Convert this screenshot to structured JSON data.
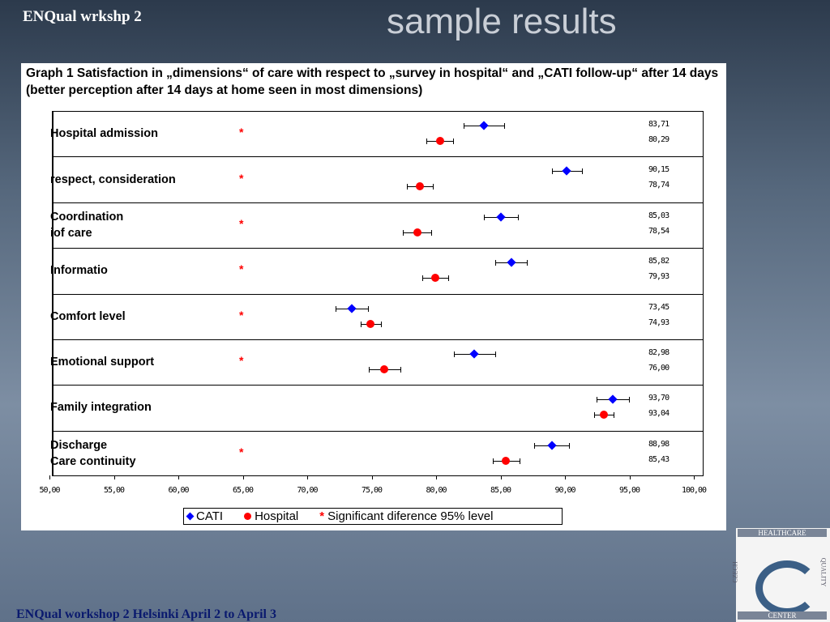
{
  "slide": {
    "header": "ENQual wrkshp 2",
    "title": "sample results",
    "footer": "ENQual workshop 2 Helsinki April 2 to April 3",
    "logo": {
      "top": "HEALTHCARE",
      "left": "CZECH",
      "right": "QUALITY",
      "bottom": "CENTER"
    }
  },
  "chart_data": {
    "type": "dotplot",
    "title": "Graph 1 Satisfaction in „dimensions“ of care with respect to „survey in hospital“ and „CATI follow-up“ after 14 days (better perception after 14 days at home seen in most dimensions)",
    "categories": [
      "Hospital admission",
      "respect, consideration",
      "Coordination\niof care",
      "Informatio",
      "Comfort level",
      "Emotional support",
      "Family integration",
      "Discharge\nCare continuity"
    ],
    "series": [
      {
        "name": "CATI",
        "color": "#0000ff",
        "marker": "diamond",
        "values": [
          83.71,
          90.15,
          85.03,
          85.82,
          73.45,
          82.98,
          93.7,
          88.98
        ],
        "value_labels": [
          "83,71",
          "90,15",
          "85,03",
          "85,82",
          "73,45",
          "82,98",
          "93,70",
          "88,98"
        ],
        "errors": [
          1.6,
          1.15,
          1.35,
          1.2,
          1.25,
          1.6,
          1.25,
          1.35
        ]
      },
      {
        "name": "Hospital",
        "color": "#ff0000",
        "marker": "circle",
        "values": [
          80.29,
          78.74,
          78.54,
          79.93,
          74.93,
          76.0,
          93.04,
          85.43
        ],
        "value_labels": [
          "80,29",
          "78,74",
          "78,54",
          "79,93",
          "74,93",
          "76,00",
          "93,04",
          "85,43"
        ],
        "errors": [
          1.05,
          1.0,
          1.1,
          1.0,
          0.8,
          1.25,
          0.75,
          1.05
        ]
      }
    ],
    "significant": {
      "name": "Significant diference 95% level",
      "symbol": "*",
      "color": "#ff0000",
      "values": [
        true,
        true,
        true,
        true,
        true,
        true,
        false,
        true
      ]
    },
    "xlim": [
      50,
      100
    ],
    "xticks": [
      {
        "value": 50,
        "label": "50,00"
      },
      {
        "value": 55,
        "label": "55,00"
      },
      {
        "value": 60,
        "label": "60,00"
      },
      {
        "value": 65,
        "label": "65,00"
      },
      {
        "value": 70,
        "label": "70,00"
      },
      {
        "value": 75,
        "label": "75,00"
      },
      {
        "value": 80,
        "label": "80,00"
      },
      {
        "value": 85,
        "label": "85,00"
      },
      {
        "value": 90,
        "label": "90,00"
      },
      {
        "value": 95,
        "label": "95,00"
      },
      {
        "value": 100,
        "label": "100,00"
      }
    ]
  }
}
